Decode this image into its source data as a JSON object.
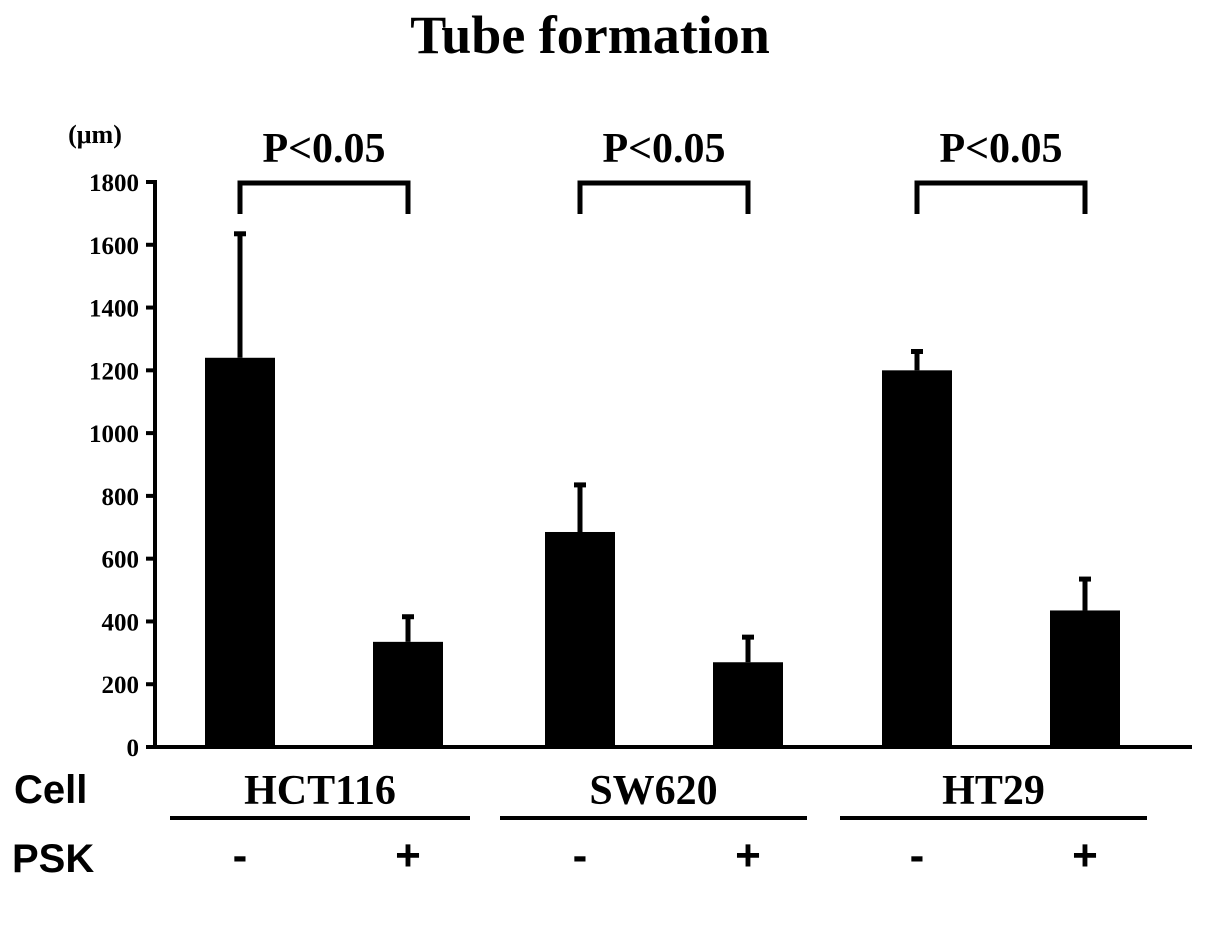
{
  "chart_data": {
    "type": "bar",
    "title": "Tube formation",
    "y_unit": "(μm)",
    "ylim": [
      0,
      1800
    ],
    "yticks": [
      0,
      200,
      400,
      600,
      800,
      1000,
      1200,
      1400,
      1600,
      1800
    ],
    "row_labels": {
      "cell": "Cell",
      "treatment": "PSK"
    },
    "groups": [
      {
        "cell": "HCT116",
        "significance": "P<0.05",
        "bars": [
          {
            "psk": "-",
            "value": 1240,
            "error": 395
          },
          {
            "psk": "+",
            "value": 335,
            "error": 80
          }
        ]
      },
      {
        "cell": "SW620",
        "significance": "P<0.05",
        "bars": [
          {
            "psk": "-",
            "value": 685,
            "error": 150
          },
          {
            "psk": "+",
            "value": 270,
            "error": 80
          }
        ]
      },
      {
        "cell": "HT29",
        "significance": "P<0.05",
        "bars": [
          {
            "psk": "-",
            "value": 1200,
            "error": 60
          },
          {
            "psk": "+",
            "value": 435,
            "error": 100
          }
        ]
      }
    ],
    "colors": {
      "bar": "#000000"
    },
    "grid": false,
    "legend": "none"
  }
}
